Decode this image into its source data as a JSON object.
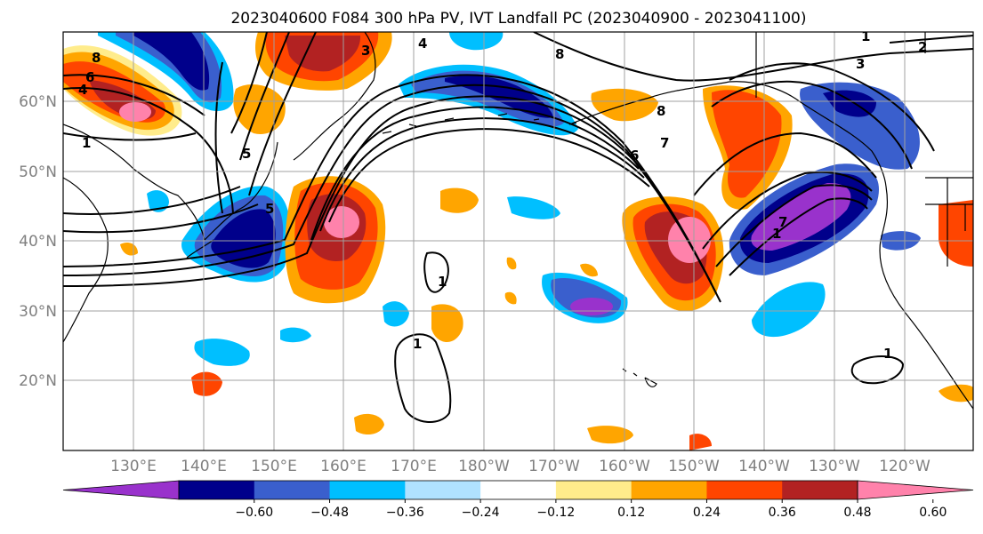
{
  "title": "2023040600 F084 300 hPa PV, IVT Landfall PC (2023040900 - 2023041100)",
  "lat_labels": [
    "60°N",
    "50°N",
    "40°N",
    "30°N",
    "20°N"
  ],
  "lon_labels": [
    "130°E",
    "140°E",
    "150°E",
    "160°E",
    "170°E",
    "180°W",
    "170°W",
    "160°W",
    "150°W",
    "140°W",
    "130°W",
    "120°W"
  ],
  "colorbar": {
    "colors": [
      "#9932cc",
      "#00008b",
      "#3a5fcd",
      "#00bfff",
      "#b0e2ff",
      "#ffffff",
      "#ffec8b",
      "#ffa500",
      "#ff4500",
      "#b22222",
      "#ff82ab"
    ],
    "tick_labels": [
      "−0.60",
      "−0.48",
      "−0.36",
      "−0.24",
      "−0.12",
      "0.12",
      "0.24",
      "0.36",
      "0.48",
      "0.60"
    ]
  },
  "contour_labels": [
    "8",
    "6",
    "4",
    "1",
    "5",
    "4",
    "8",
    "3",
    "5",
    "7",
    "6",
    "8",
    "1",
    "1",
    "1",
    "2",
    "3",
    "1",
    "7",
    "1"
  ]
}
